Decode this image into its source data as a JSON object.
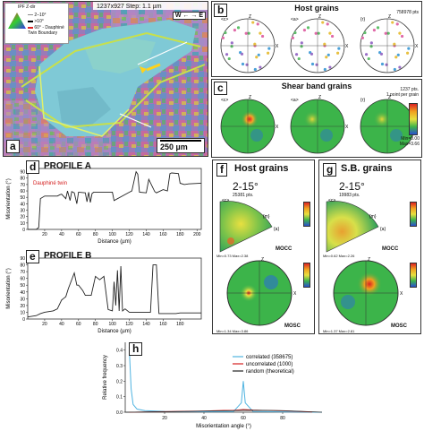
{
  "panel_a": {
    "letter": "a",
    "header": "1237x927 Step: 1.1 µm",
    "ipf_label": "IPF Z-dir",
    "legend": [
      "2–10°",
      ">10°",
      "60° - Dauphiné Twin Boundary"
    ],
    "compass": "W ← → E",
    "scale": "250 µm"
  },
  "panel_b": {
    "letter": "b",
    "title": "Host grains",
    "count": "758978 pts",
    "poles": [
      "<c>",
      "<a>",
      "{r}"
    ]
  },
  "panel_c": {
    "letter": "c",
    "title": "Shear band grains",
    "count": "1237 pts.",
    "note": "1 point per grain",
    "poles": [
      "<c>",
      "<a>",
      "{r}"
    ],
    "scale_min": "Min=0.00",
    "scale_max": "Max=3.66"
  },
  "panel_d": {
    "letter": "d",
    "title": "PROFILE A",
    "annotation": "Dauphiné twin"
  },
  "panel_e": {
    "letter": "e",
    "title": "PROFILE B"
  },
  "profile_axes": {
    "ylabel": "Misorientation (°)",
    "xlabel": "Distance (µm)",
    "yticks": [
      "0",
      "10",
      "20",
      "30",
      "40",
      "50",
      "60",
      "70",
      "80",
      "90"
    ],
    "a_xticks": [
      "20",
      "40",
      "60",
      "80",
      "100",
      "120",
      "140",
      "160",
      "180",
      "200"
    ],
    "b_xticks": [
      "20",
      "40",
      "60",
      "80",
      "100",
      "120",
      "140",
      "160",
      "180"
    ]
  },
  "panel_f": {
    "letter": "f",
    "title": "Host grains",
    "range": "2-15°",
    "count": "25381 pts.",
    "mocc": "MOCC",
    "mosc": "MOSC",
    "mocc_minmax": "Min=0.73 Max=2.38",
    "mosc_minmax": "Min=1.34 Max=3.86"
  },
  "panel_g": {
    "letter": "g",
    "title": "S.B. grains",
    "range": "2-15°",
    "count": "19983 pts.",
    "mocc": "MOCC",
    "mosc": "MOSC",
    "mocc_minmax": "Min=0.62 Max=2.26",
    "mosc_minmax": "Min=1.37 Max=2.81"
  },
  "panel_h": {
    "letter": "h",
    "ylabel": "Relative frequency",
    "xlabel": "Misorientation angle (°)",
    "legend": [
      "correlated (358675)",
      "uncorrelated (1000)",
      "random (theoretical)"
    ],
    "yticks": [
      "0.0",
      "0.1",
      "0.2",
      "0.3",
      "0.4"
    ],
    "xticks": [
      "20",
      "40",
      "60",
      "80"
    ]
  },
  "colors": {
    "correlated": "#4fb3e0",
    "uncorrelated": "#d42020",
    "random": "#222222",
    "profile": "#222222"
  },
  "chart_data": [
    {
      "type": "line",
      "title": "PROFILE A",
      "xlabel": "Distance (µm)",
      "ylabel": "Misorientation (°)",
      "xlim": [
        0,
        205
      ],
      "ylim": [
        0,
        95
      ],
      "x": [
        0,
        10,
        13,
        15,
        20,
        35,
        38,
        40,
        45,
        47,
        50,
        52,
        55,
        58,
        60,
        68,
        70,
        72,
        74,
        76,
        78,
        100,
        102,
        120,
        123,
        128,
        130,
        132,
        140,
        143,
        150,
        152,
        160,
        165,
        168,
        170,
        178,
        180,
        185,
        190,
        205
      ],
      "y": [
        0,
        0,
        3,
        48,
        52,
        52,
        54,
        55,
        48,
        60,
        45,
        59,
        57,
        40,
        58,
        57,
        43,
        58,
        42,
        56,
        58,
        58,
        45,
        58,
        60,
        90,
        86,
        58,
        57,
        78,
        59,
        57,
        62,
        60,
        87,
        88,
        87,
        72,
        70,
        71,
        72
      ]
    },
    {
      "type": "line",
      "title": "PROFILE B",
      "xlabel": "Distance (µm)",
      "ylabel": "Misorientation (°)",
      "xlim": [
        0,
        205
      ],
      "ylim": [
        0,
        90
      ],
      "x": [
        0,
        10,
        15,
        20,
        30,
        35,
        40,
        42,
        45,
        48,
        55,
        58,
        60,
        65,
        68,
        75,
        80,
        85,
        90,
        95,
        100,
        102,
        104,
        106,
        108,
        110,
        112,
        115,
        120,
        130,
        145,
        148,
        152,
        155,
        175,
        180,
        205
      ],
      "y": [
        3,
        5,
        8,
        10,
        12,
        15,
        28,
        30,
        33,
        45,
        68,
        50,
        50,
        42,
        35,
        35,
        63,
        58,
        63,
        14,
        12,
        55,
        20,
        72,
        12,
        78,
        12,
        15,
        10,
        10,
        10,
        80,
        80,
        8,
        8,
        9,
        9
      ]
    },
    {
      "type": "line",
      "xlabel": "Misorientation angle (°)",
      "ylabel": "Relative frequency",
      "xlim": [
        0,
        100
      ],
      "ylim": [
        0,
        0.45
      ],
      "series": [
        {
          "name": "correlated (358675)",
          "x": [
            2,
            3,
            4,
            6,
            10,
            20,
            40,
            55,
            59,
            60,
            61,
            65,
            80,
            100
          ],
          "y": [
            0.42,
            0.15,
            0.05,
            0.02,
            0.01,
            0.005,
            0.003,
            0.004,
            0.06,
            0.2,
            0.06,
            0.004,
            0.002,
            0.0
          ]
        },
        {
          "name": "uncorrelated (1000)",
          "x": [
            2,
            10,
            20,
            30,
            40,
            50,
            55,
            60,
            65,
            70,
            80,
            90,
            95
          ],
          "y": [
            0.0,
            0.002,
            0.004,
            0.006,
            0.008,
            0.012,
            0.012,
            0.018,
            0.014,
            0.012,
            0.009,
            0.004,
            0.001
          ]
        },
        {
          "name": "random (theoretical)",
          "x": [
            0,
            20,
            40,
            55,
            60,
            70,
            80,
            90,
            100
          ],
          "y": [
            0,
            0.003,
            0.007,
            0.01,
            0.012,
            0.012,
            0.01,
            0.005,
            0.0
          ]
        }
      ]
    }
  ]
}
